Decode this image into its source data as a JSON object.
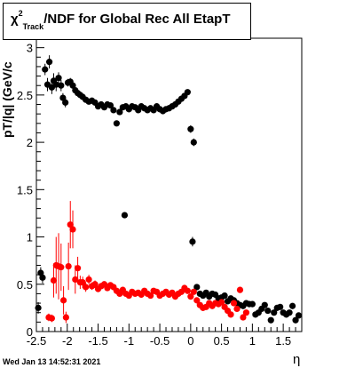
{
  "chart_data": {
    "type": "scatter",
    "title_prefix": "χ",
    "title_sup": "2",
    "title_sub": "Track",
    "title_suffix": "/NDF for Global Rec All EtapT",
    "xlabel": "η",
    "ylabel": "pT/|q| (GeV/c",
    "xlim": [
      -2.5,
      1.8
    ],
    "ylim": [
      0,
      3.1
    ],
    "x_ticks": [
      "-2.5",
      "-2",
      "-1.5",
      "-1",
      "-0.5",
      "0",
      "0.5",
      "1",
      "1.5"
    ],
    "x_tick_values": [
      -2.5,
      -2,
      -1.5,
      -1,
      -0.5,
      0,
      0.5,
      1,
      1.5
    ],
    "y_ticks": [
      "0",
      "0.5",
      "1",
      "1.5",
      "2",
      "2.5",
      "3"
    ],
    "y_tick_values": [
      0,
      0.5,
      1,
      1.5,
      2,
      2.5,
      3
    ],
    "series": [
      {
        "color": "#000000",
        "points": [
          [
            -2.47,
            0.25,
            0.06
          ],
          [
            -2.43,
            0.62,
            0.06
          ],
          [
            -2.4,
            0.57,
            0.06
          ],
          [
            -2.36,
            2.77,
            0.06
          ],
          [
            -2.32,
            2.61,
            0.07
          ],
          [
            -2.29,
            2.85,
            0.07
          ],
          [
            -2.25,
            2.58,
            0.07
          ],
          [
            -2.22,
            2.65,
            0.08
          ],
          [
            -2.18,
            2.61,
            0.07
          ],
          [
            -2.14,
            2.68,
            0.06
          ],
          [
            -2.1,
            2.6,
            0.06
          ],
          [
            -2.07,
            2.47,
            0.05
          ],
          [
            -2.03,
            2.42,
            0.05
          ],
          [
            -1.99,
            2.63,
            0.04
          ],
          [
            -1.95,
            2.64,
            0.04
          ],
          [
            -1.91,
            2.6,
            0.03
          ],
          [
            -1.87,
            2.55,
            0.03
          ],
          [
            -1.83,
            2.52,
            0.03
          ],
          [
            -1.79,
            2.5,
            0.03
          ],
          [
            -1.75,
            2.48,
            0.03
          ],
          [
            -1.7,
            2.45,
            0.02
          ],
          [
            -1.65,
            2.43,
            0.02
          ],
          [
            -1.6,
            2.44,
            0.02
          ],
          [
            -1.55,
            2.42,
            0.02
          ],
          [
            -1.5,
            2.38,
            0.02
          ],
          [
            -1.45,
            2.4,
            0.02
          ],
          [
            -1.4,
            2.37,
            0.02
          ],
          [
            -1.35,
            2.4,
            0.02
          ],
          [
            -1.3,
            2.39,
            0.02
          ],
          [
            -1.25,
            2.34,
            0.02
          ],
          [
            -1.2,
            2.2,
            0.02
          ],
          [
            -1.15,
            2.32,
            0.02
          ],
          [
            -1.1,
            2.37,
            0.02
          ],
          [
            -1.05,
            2.38,
            0.02
          ],
          [
            -1.0,
            2.35,
            0.02
          ],
          [
            -0.95,
            2.38,
            0.02
          ],
          [
            -0.9,
            2.37,
            0.02
          ],
          [
            -0.85,
            2.34,
            0.02
          ],
          [
            -0.8,
            2.38,
            0.02
          ],
          [
            -0.75,
            2.36,
            0.02
          ],
          [
            -0.7,
            2.34,
            0.02
          ],
          [
            -0.65,
            2.36,
            0.02
          ],
          [
            -0.6,
            2.34,
            0.02
          ],
          [
            -0.55,
            2.38,
            0.02
          ],
          [
            -0.5,
            2.35,
            0.02
          ],
          [
            -0.45,
            2.33,
            0.02
          ],
          [
            -0.4,
            2.35,
            0.02
          ],
          [
            -0.35,
            2.36,
            0.02
          ],
          [
            -0.3,
            2.38,
            0.02
          ],
          [
            -0.25,
            2.4,
            0.02
          ],
          [
            -0.2,
            2.43,
            0.02
          ],
          [
            -0.15,
            2.46,
            0.02
          ],
          [
            -0.1,
            2.49,
            0.02
          ],
          [
            -0.05,
            2.53,
            0.03
          ],
          [
            0.0,
            2.14,
            0.04
          ],
          [
            0.05,
            2.0,
            0.04
          ],
          [
            -1.07,
            1.23,
            0.03
          ],
          [
            0.03,
            0.95,
            0.05
          ],
          [
            0.1,
            0.47,
            0.03
          ],
          [
            0.15,
            0.4,
            0.03
          ],
          [
            0.2,
            0.38,
            0.02
          ],
          [
            0.25,
            0.41,
            0.02
          ],
          [
            0.3,
            0.37,
            0.02
          ],
          [
            0.35,
            0.4,
            0.02
          ],
          [
            0.4,
            0.39,
            0.02
          ],
          [
            0.45,
            0.35,
            0.02
          ],
          [
            0.5,
            0.36,
            0.02
          ],
          [
            0.55,
            0.38,
            0.02
          ],
          [
            0.6,
            0.32,
            0.02
          ],
          [
            0.65,
            0.35,
            0.02
          ],
          [
            0.7,
            0.33,
            0.02
          ],
          [
            0.75,
            0.3,
            0.02
          ],
          [
            0.8,
            0.28,
            0.02
          ],
          [
            0.85,
            0.27,
            0.02
          ],
          [
            0.9,
            0.3,
            0.02
          ],
          [
            0.95,
            0.29,
            0.02
          ],
          [
            1.0,
            0.29,
            0.02
          ],
          [
            1.05,
            0.18,
            0.02
          ],
          [
            1.1,
            0.2,
            0.02
          ],
          [
            1.15,
            0.24,
            0.02
          ],
          [
            1.2,
            0.28,
            0.02
          ],
          [
            1.25,
            0.22,
            0.02
          ],
          [
            1.3,
            0.12,
            0.02
          ],
          [
            1.35,
            0.2,
            0.02
          ],
          [
            1.4,
            0.25,
            0.02
          ],
          [
            1.45,
            0.26,
            0.02
          ],
          [
            1.5,
            0.2,
            0.02
          ],
          [
            1.55,
            0.18,
            0.02
          ],
          [
            1.6,
            0.2,
            0.02
          ],
          [
            1.65,
            0.27,
            0.02
          ],
          [
            1.7,
            0.12,
            0.02
          ],
          [
            1.75,
            0.17,
            0.02
          ]
        ]
      },
      {
        "color": "#ff0000",
        "points": [
          [
            -2.3,
            0.15,
            0.04
          ],
          [
            -2.25,
            0.14,
            0.04
          ],
          [
            -2.22,
            0.54,
            0.18
          ],
          [
            -2.18,
            0.7,
            0.3
          ],
          [
            -2.14,
            0.69,
            0.35
          ],
          [
            -2.1,
            0.68,
            0.25
          ],
          [
            -2.06,
            0.33,
            0.15
          ],
          [
            -2.02,
            0.15,
            0.06
          ],
          [
            -1.98,
            0.69,
            0.25
          ],
          [
            -1.95,
            1.13,
            0.25
          ],
          [
            -1.91,
            1.08,
            0.2
          ],
          [
            -1.87,
            0.55,
            0.15
          ],
          [
            -1.83,
            0.67,
            0.12
          ],
          [
            -1.79,
            0.52,
            0.07
          ],
          [
            -1.75,
            0.52,
            0.06
          ],
          [
            -1.7,
            0.47,
            0.05
          ],
          [
            -1.65,
            0.55,
            0.05
          ],
          [
            -1.6,
            0.48,
            0.04
          ],
          [
            -1.55,
            0.5,
            0.04
          ],
          [
            -1.5,
            0.45,
            0.03
          ],
          [
            -1.45,
            0.48,
            0.03
          ],
          [
            -1.4,
            0.5,
            0.03
          ],
          [
            -1.35,
            0.46,
            0.03
          ],
          [
            -1.3,
            0.49,
            0.03
          ],
          [
            -1.25,
            0.47,
            0.03
          ],
          [
            -1.2,
            0.43,
            0.03
          ],
          [
            -1.15,
            0.4,
            0.02
          ],
          [
            -1.1,
            0.44,
            0.02
          ],
          [
            -1.05,
            0.4,
            0.02
          ],
          [
            -1.0,
            0.38,
            0.02
          ],
          [
            -0.95,
            0.42,
            0.02
          ],
          [
            -0.9,
            0.4,
            0.02
          ],
          [
            -0.85,
            0.41,
            0.02
          ],
          [
            -0.8,
            0.39,
            0.02
          ],
          [
            -0.75,
            0.43,
            0.02
          ],
          [
            -0.7,
            0.4,
            0.02
          ],
          [
            -0.65,
            0.38,
            0.02
          ],
          [
            -0.6,
            0.43,
            0.02
          ],
          [
            -0.55,
            0.42,
            0.02
          ],
          [
            -0.5,
            0.38,
            0.02
          ],
          [
            -0.45,
            0.4,
            0.02
          ],
          [
            -0.4,
            0.42,
            0.02
          ],
          [
            -0.35,
            0.39,
            0.02
          ],
          [
            -0.3,
            0.41,
            0.02
          ],
          [
            -0.25,
            0.37,
            0.02
          ],
          [
            -0.2,
            0.4,
            0.02
          ],
          [
            -0.15,
            0.42,
            0.02
          ],
          [
            -0.1,
            0.46,
            0.02
          ],
          [
            -0.05,
            0.43,
            0.02
          ],
          [
            0.0,
            0.37,
            0.02
          ],
          [
            0.05,
            0.42,
            0.02
          ],
          [
            0.1,
            0.33,
            0.02
          ],
          [
            0.15,
            0.28,
            0.02
          ],
          [
            0.2,
            0.25,
            0.02
          ],
          [
            0.25,
            0.26,
            0.02
          ],
          [
            0.3,
            0.3,
            0.02
          ],
          [
            0.35,
            0.27,
            0.02
          ],
          [
            0.4,
            0.3,
            0.02
          ],
          [
            0.45,
            0.29,
            0.02
          ],
          [
            0.5,
            0.31,
            0.02
          ],
          [
            0.55,
            0.26,
            0.02
          ],
          [
            0.6,
            0.22,
            0.02
          ],
          [
            0.65,
            0.18,
            0.02
          ],
          [
            0.7,
            0.3,
            0.02
          ],
          [
            0.75,
            0.24,
            0.02
          ],
          [
            0.8,
            0.44,
            0.03
          ],
          [
            0.85,
            0.15,
            0.02
          ],
          [
            0.9,
            0.2,
            0.02
          ]
        ]
      }
    ],
    "datestamp": "Wed Jan 13 14:52:31 2021"
  }
}
